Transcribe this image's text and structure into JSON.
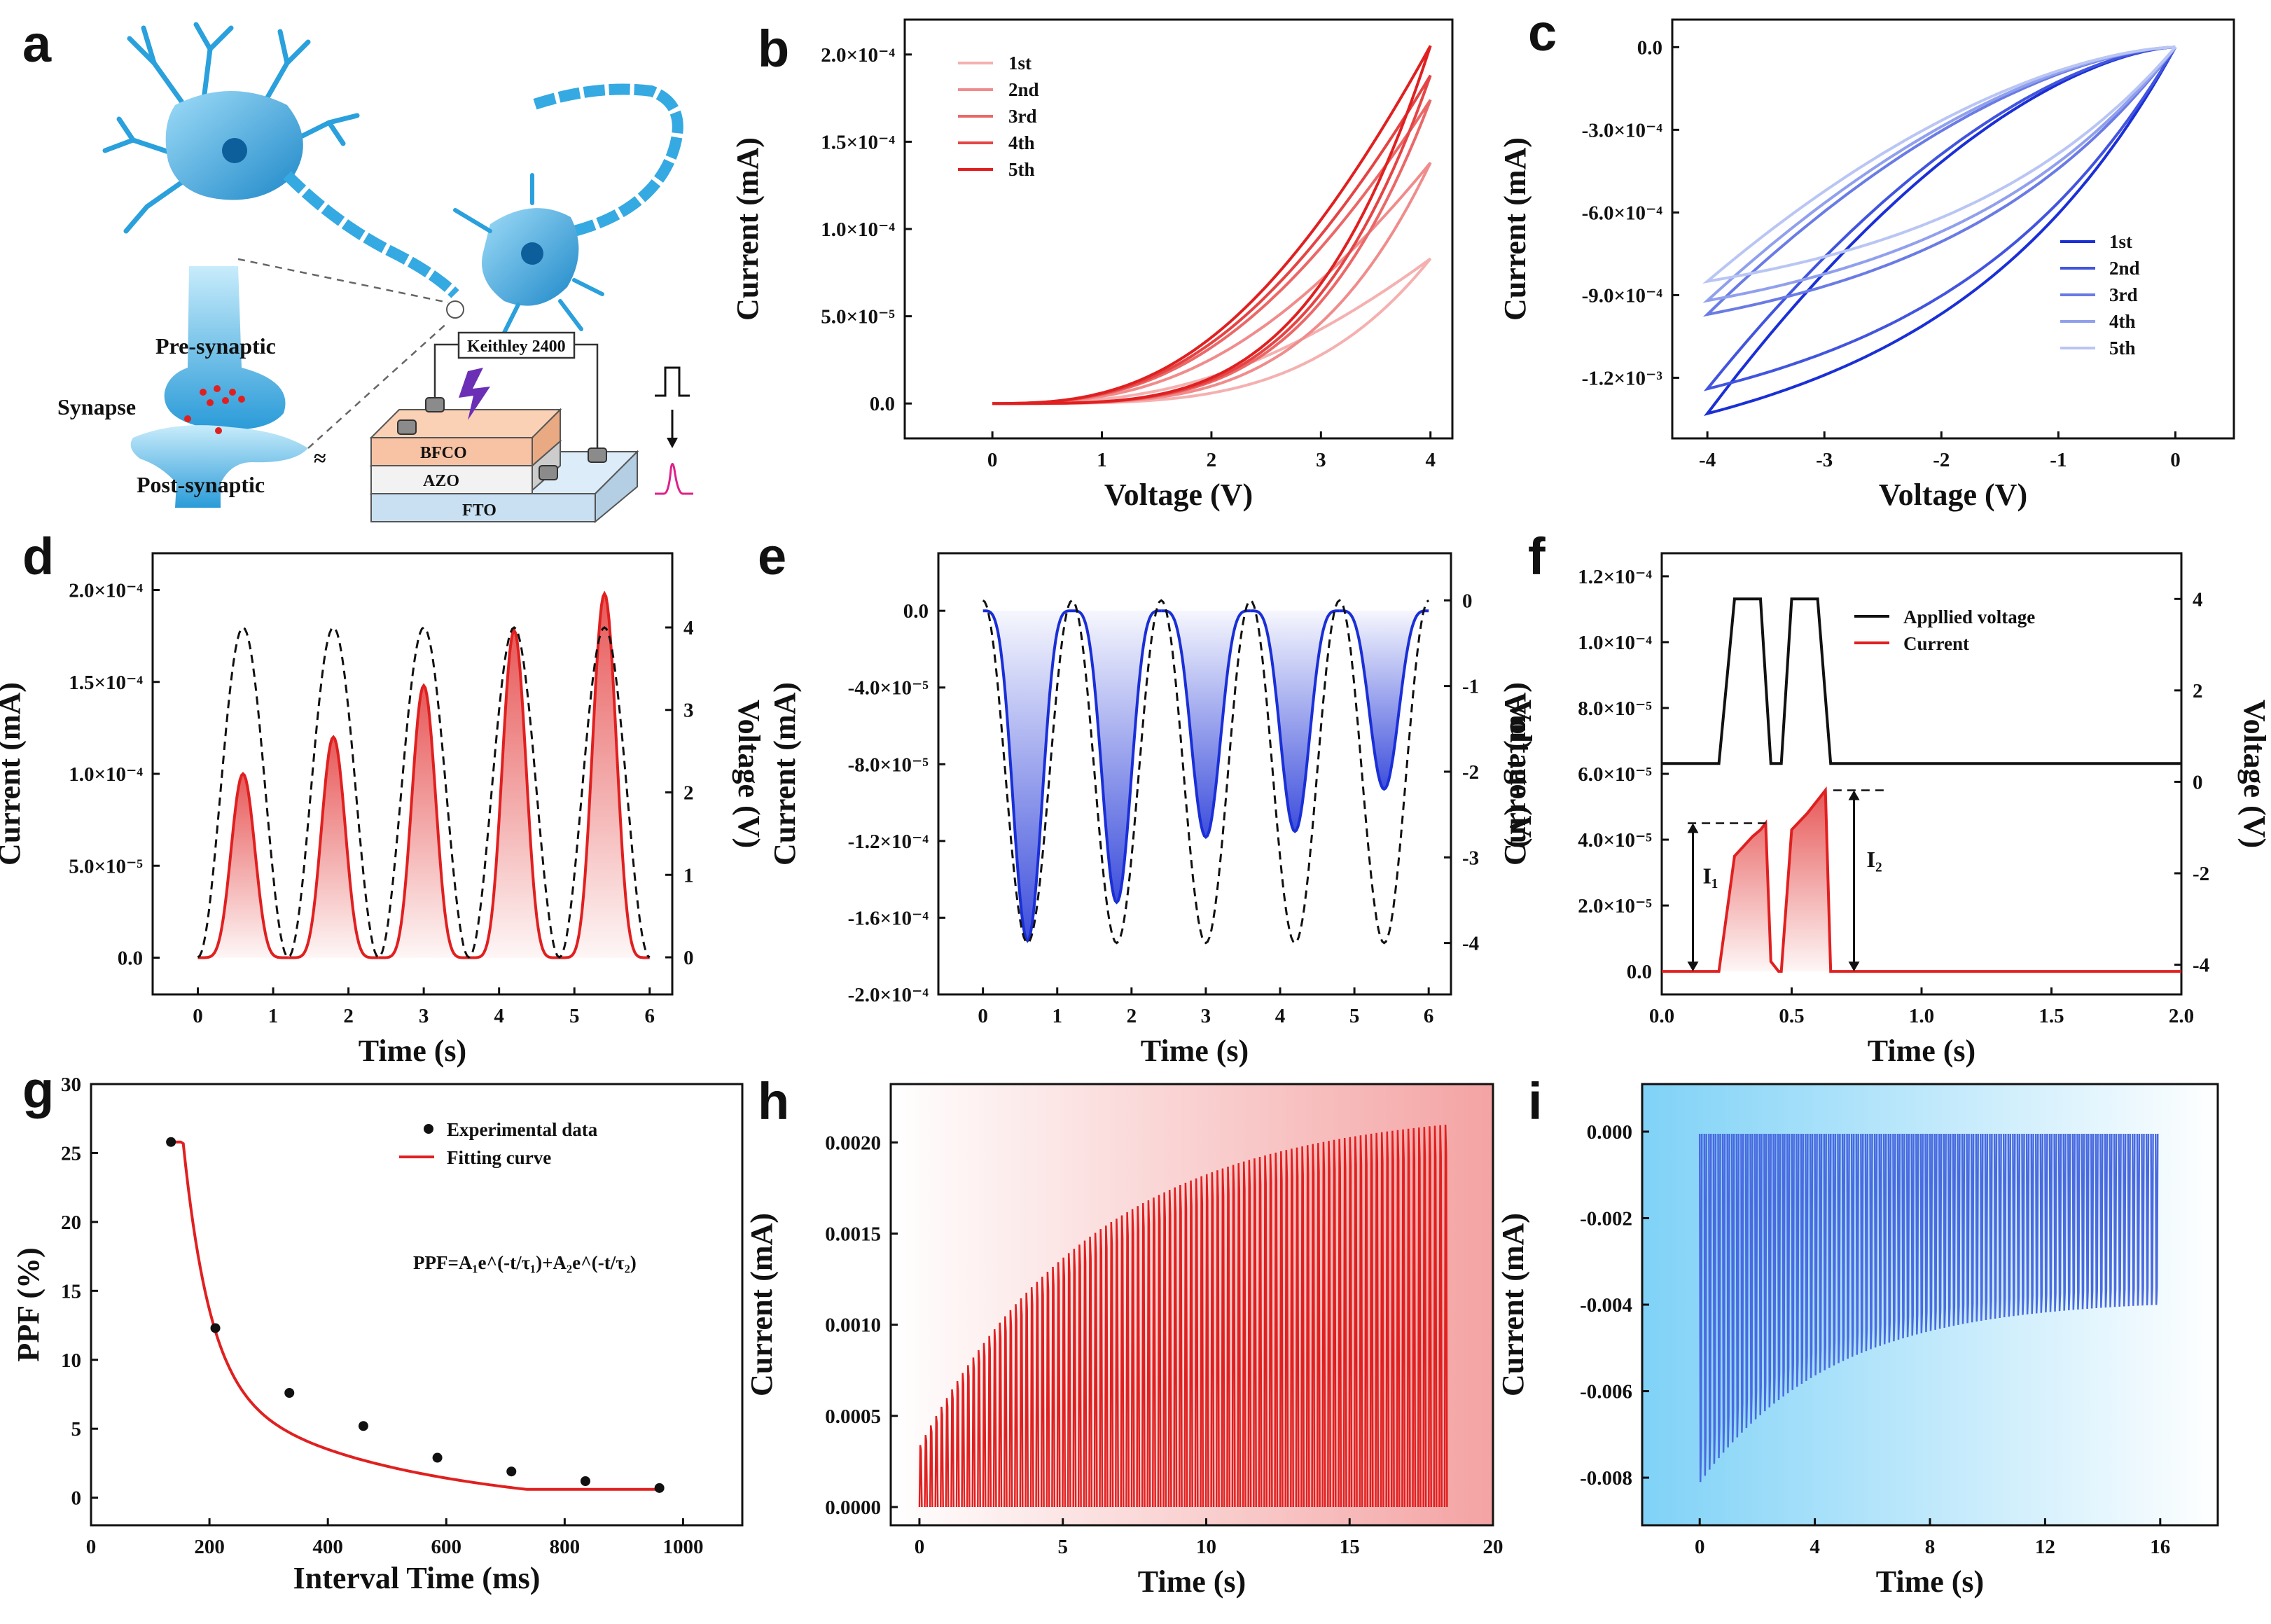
{
  "panel_letters": [
    "a",
    "b",
    "c",
    "d",
    "e",
    "f",
    "g",
    "h",
    "i"
  ],
  "colors": {
    "red": "#e02020",
    "blue": "#1a2fd6",
    "red_light": "#f5b0b0",
    "blue_light": "#b9c6f4",
    "black": "#111111"
  },
  "schematic": {
    "pre_synaptic": "Pre-synaptic",
    "synapse": "Synapse",
    "post_synaptic": "Post-synaptic",
    "instrument": "Keithley 2400",
    "layers": [
      "BFCO",
      "AZO",
      "FTO"
    ]
  },
  "chart_data": [
    {
      "panel": "b",
      "type": "line",
      "xlabel": "Voltage (V)",
      "ylabel": "Current (mA)",
      "xlim": [
        -0.8,
        4.2
      ],
      "ylim": [
        -2e-05,
        0.00022
      ],
      "xticks": [
        "0",
        "1",
        "2",
        "3",
        "4"
      ],
      "yticks": [
        "0.0",
        "5.0×10⁻⁵",
        "1.0×10⁻⁴",
        "1.5×10⁻⁴",
        "2.0×10⁻⁴"
      ],
      "legend": [
        "1st",
        "2nd",
        "3rd",
        "4th",
        "5th"
      ],
      "series": [
        {
          "name": "1st",
          "vmax": 4,
          "imax": 8.3e-05
        },
        {
          "name": "2nd",
          "vmax": 4,
          "imax": 0.000138
        },
        {
          "name": "3rd",
          "vmax": 4,
          "imax": 0.000174
        },
        {
          "name": "4th",
          "vmax": 4,
          "imax": 0.000188
        },
        {
          "name": "5th",
          "vmax": 4,
          "imax": 0.000205
        }
      ]
    },
    {
      "panel": "c",
      "type": "line",
      "xlabel": "Voltage (V)",
      "ylabel": "Current (mA)",
      "xlim": [
        -4.3,
        0.5
      ],
      "ylim": [
        -0.00142,
        0.0001
      ],
      "xticks": [
        "-4",
        "-3",
        "-2",
        "-1",
        "0"
      ],
      "yticks": [
        "0.0",
        "-3.0×10⁻⁴",
        "-6.0×10⁻⁴",
        "-9.0×10⁻⁴",
        "-1.2×10⁻³"
      ],
      "legend": [
        "1st",
        "2nd",
        "3rd",
        "4th",
        "5th"
      ],
      "series": [
        {
          "name": "1st",
          "vmin": -4,
          "imin": -0.00133
        },
        {
          "name": "2nd",
          "vmin": -4,
          "imin": -0.00124
        },
        {
          "name": "3rd",
          "vmin": -4,
          "imin": -0.00097
        },
        {
          "name": "4th",
          "vmin": -4,
          "imin": -0.00092
        },
        {
          "name": "5th",
          "vmin": -4,
          "imin": -0.00085
        }
      ]
    },
    {
      "panel": "d",
      "type": "line",
      "xlabel": "Time (s)",
      "ylabel": "Current (mA)",
      "y2label": "Voltage (V)",
      "xlim": [
        -0.6,
        6.3
      ],
      "ylim": [
        -2e-05,
        0.00022
      ],
      "y2lim": [
        -0.45,
        4.9
      ],
      "xticks": [
        "0",
        "1",
        "2",
        "3",
        "4",
        "5",
        "6"
      ],
      "yticks": [
        "0.0",
        "5.0×10⁻⁵",
        "1.0×10⁻⁴",
        "1.5×10⁻⁴",
        "2.0×10⁻⁴"
      ],
      "y2ticks": [
        "0",
        "1",
        "2",
        "3",
        "4"
      ],
      "peak_times": [
        0.6,
        1.8,
        3.0,
        4.2,
        5.4
      ],
      "peak_currents": [
        0.0001,
        0.00012,
        0.000148,
        0.000178,
        0.000198
      ],
      "voltage_amplitude": 4
    },
    {
      "panel": "e",
      "type": "line",
      "xlabel": "Time (s)",
      "ylabel": "Current (mA)",
      "y2label": "Voltage (V)",
      "xlim": [
        -0.6,
        6.3
      ],
      "ylim": [
        -0.0002,
        3e-05
      ],
      "y2lim": [
        -4.6,
        0.55
      ],
      "xticks": [
        "0",
        "1",
        "2",
        "3",
        "4",
        "5",
        "6"
      ],
      "yticks": [
        "0.0",
        "-4.0×10⁻⁵",
        "-8.0×10⁻⁵",
        "-1.2×10⁻⁴",
        "-1.6×10⁻⁴",
        "-2.0×10⁻⁴"
      ],
      "y2ticks": [
        "0",
        "-1",
        "-2",
        "-3",
        "-4"
      ],
      "peak_times": [
        0.6,
        1.8,
        3.0,
        4.2,
        5.4
      ],
      "peak_currents": [
        -0.000172,
        -0.000152,
        -0.000118,
        -0.000115,
        -9.3e-05
      ],
      "voltage_amplitude": -4
    },
    {
      "panel": "f",
      "type": "line",
      "xlabel": "Time (s)",
      "ylabel": "Current (mA)",
      "y2label": "Voltage (V)",
      "xlim": [
        0,
        2.0
      ],
      "ylim": [
        -7e-06,
        0.000127
      ],
      "y2lim": [
        -4.65,
        5.0
      ],
      "xticks": [
        "0.0",
        "0.5",
        "1.0",
        "1.5",
        "2.0"
      ],
      "yticks": [
        "0.0",
        "2.0×10⁻⁵",
        "4.0×10⁻⁵",
        "6.0×10⁻⁵",
        "8.0×10⁻⁵",
        "1.0×10⁻⁴",
        "1.2×10⁻⁴"
      ],
      "y2ticks": [
        "-4",
        "-2",
        "0",
        "2",
        "4"
      ],
      "legend": [
        "Appllied voltage",
        "Current"
      ],
      "pulse_windows": [
        [
          0.22,
          0.4
        ],
        [
          0.46,
          0.65
        ]
      ],
      "current_peaks": [
        4.5e-05,
        5.5e-05
      ],
      "annotations": [
        "I₁",
        "I₂"
      ]
    },
    {
      "panel": "g",
      "type": "scatter",
      "xlabel": "Interval Time (ms)",
      "ylabel": "PPF (%)",
      "xlim": [
        0,
        1100
      ],
      "ylim": [
        -2,
        30
      ],
      "xticks": [
        "0",
        "200",
        "400",
        "600",
        "800",
        "1000"
      ],
      "yticks": [
        "0",
        "5",
        "10",
        "15",
        "20",
        "25",
        "30"
      ],
      "legend": [
        "Experimental data",
        "Fitting curve"
      ],
      "formula": "PPF=A₁e^(-t/τ₁)+A₂e^(-t/τ₂)",
      "x": [
        135,
        210,
        335,
        460,
        585,
        710,
        835,
        960
      ],
      "y": [
        25.8,
        12.3,
        7.6,
        5.2,
        2.9,
        1.9,
        1.2,
        0.7
      ]
    },
    {
      "panel": "h",
      "type": "line",
      "xlabel": "Time (s)",
      "ylabel": "Current (mA)",
      "xlim": [
        -1,
        20
      ],
      "ylim": [
        -0.0001,
        0.00232
      ],
      "xticks": [
        "0",
        "5",
        "10",
        "15",
        "20"
      ],
      "yticks": [
        "0.0000",
        "0.0005",
        "0.0010",
        "0.0015",
        "0.0020"
      ],
      "pulse_count": 100,
      "t_end": 18.5,
      "peak_start": 0.00034,
      "peak_end": 0.0021
    },
    {
      "panel": "i",
      "type": "line",
      "xlabel": "Time (s)",
      "ylabel": "Current (mA)",
      "xlim": [
        -2,
        18
      ],
      "ylim": [
        -0.0091,
        0.0011
      ],
      "xticks": [
        "0",
        "4",
        "8",
        "12",
        "16"
      ],
      "yticks": [
        "0.000",
        "-0.002",
        "-0.004",
        "-0.006",
        "-0.008"
      ],
      "pulse_count": 100,
      "t_end": 16,
      "peak_start": -0.0081,
      "peak_end": -0.004
    }
  ]
}
